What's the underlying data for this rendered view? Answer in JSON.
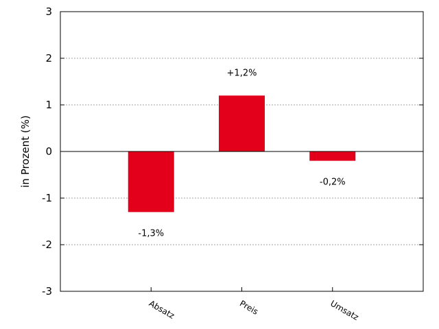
{
  "chart_data": {
    "type": "bar",
    "categories": [
      "Absatz",
      "Preis",
      "Umsatz"
    ],
    "values": [
      -1.3,
      1.2,
      -0.2
    ],
    "data_labels": [
      "-1,3%",
      "+1,2%",
      "-0,2%"
    ],
    "title": "",
    "xlabel": "",
    "ylabel": "in Prozent (%)",
    "ylim": [
      -3,
      3
    ],
    "yticks": [
      -3,
      -2,
      -1,
      0,
      1,
      2,
      3
    ],
    "grid": "horizontal",
    "bar_color": "#e2001a",
    "legend": "none"
  }
}
